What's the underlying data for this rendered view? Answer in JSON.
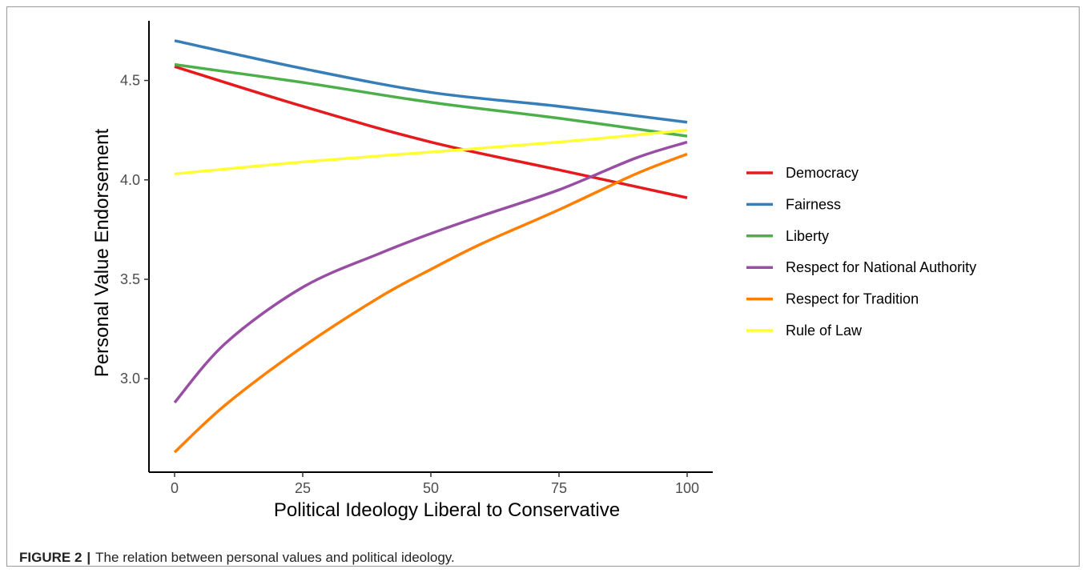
{
  "chart_data": {
    "type": "line",
    "xlabel": "Political Ideology Liberal to Conservative",
    "ylabel": "Personal Value Endorsement",
    "xlim": [
      -5,
      105
    ],
    "ylim": [
      2.53,
      4.8
    ],
    "x_ticks": [
      "0",
      "25",
      "50",
      "75",
      "100"
    ],
    "x_tick_values": [
      0,
      25,
      50,
      75,
      100
    ],
    "y_ticks": [
      "3.0",
      "3.5",
      "4.0",
      "4.5"
    ],
    "y_tick_values": [
      3.0,
      3.5,
      4.0,
      4.5
    ],
    "grid": false,
    "legend_position": "right",
    "series": [
      {
        "name": "Democracy",
        "color": "#e41a1c",
        "x": [
          0,
          25,
          50,
          75,
          100
        ],
        "y": [
          4.57,
          4.37,
          4.19,
          4.05,
          3.91
        ]
      },
      {
        "name": "Fairness",
        "color": "#377eb8",
        "x": [
          0,
          25,
          50,
          75,
          100
        ],
        "y": [
          4.7,
          4.56,
          4.44,
          4.37,
          4.29
        ]
      },
      {
        "name": "Liberty",
        "color": "#4daf4a",
        "x": [
          0,
          25,
          50,
          75,
          100
        ],
        "y": [
          4.58,
          4.49,
          4.39,
          4.31,
          4.22
        ]
      },
      {
        "name": "Respect for National Authority",
        "color": "#984ea3",
        "x": [
          0,
          10,
          25,
          40,
          50,
          60,
          75,
          90,
          100
        ],
        "y": [
          2.88,
          3.18,
          3.46,
          3.63,
          3.73,
          3.82,
          3.95,
          4.11,
          4.19
        ]
      },
      {
        "name": "Respect for Tradition",
        "color": "#ff7f00",
        "x": [
          0,
          10,
          25,
          40,
          50,
          60,
          75,
          90,
          100
        ],
        "y": [
          2.63,
          2.87,
          3.16,
          3.41,
          3.55,
          3.68,
          3.85,
          4.03,
          4.13
        ]
      },
      {
        "name": "Rule of Law",
        "color": "#ffff33",
        "x": [
          0,
          25,
          50,
          75,
          100
        ],
        "y": [
          4.03,
          4.09,
          4.14,
          4.19,
          4.25
        ]
      }
    ]
  },
  "caption": {
    "label": "FIGURE 2",
    "separator": "|",
    "text": "The relation between personal values and political ideology."
  }
}
